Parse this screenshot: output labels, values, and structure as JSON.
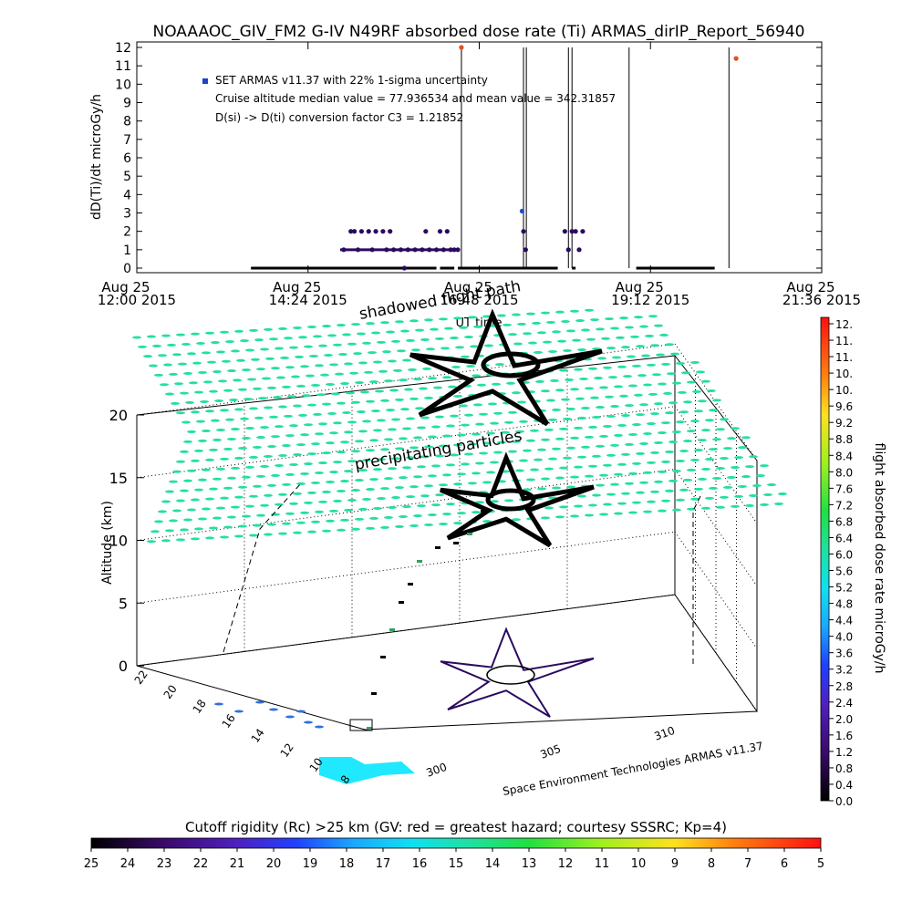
{
  "title": "NOAAAOC_GIV_FM2 G-IV    N49RF  absorbed dose rate (Ti) ARMAS_dirIP_Report_56940",
  "chart_data": [
    {
      "type": "scatter",
      "ylabel": "dD(Ti)/dt microGy/h",
      "xlabel": "UT time",
      "ylim": [
        0,
        12
      ],
      "y_ticks": [
        "0",
        "1",
        "2",
        "3",
        "4",
        "5",
        "6",
        "7",
        "8",
        "9",
        "10",
        "11",
        "12"
      ],
      "x_ticks": [
        {
          "top": "Aug 25",
          "bottom": "12:00 2015"
        },
        {
          "top": "Aug 25",
          "bottom": "14:24 2015"
        },
        {
          "top": "Aug 25",
          "bottom": "16:48 2015"
        },
        {
          "top": "Aug 25",
          "bottom": "19:12 2015"
        },
        {
          "top": "Aug 25",
          "bottom": "21:36 2015"
        }
      ],
      "x_range_hours": [
        12.0,
        21.6
      ],
      "annotations": [
        "SET ARMAS v11.37 with 22% 1-sigma uncertainty",
        "Cruise altitude median value = 77.936534 and mean value = 342.31857",
        "D(si) -> D(ti) conversion factor C3 = 1.21852"
      ],
      "legend_placement": "top-left",
      "series_color": "#2a0a5e",
      "baseline_segments": [
        [
          13.6,
          16.2
        ],
        [
          16.25,
          16.45
        ],
        [
          16.5,
          17.1
        ],
        [
          17.1,
          17.9
        ],
        [
          18.1,
          18.15
        ],
        [
          19.0,
          20.1
        ]
      ],
      "points": [
        [
          14.9,
          1
        ],
        [
          15.0,
          2
        ],
        [
          15.05,
          2
        ],
        [
          15.1,
          1
        ],
        [
          15.15,
          2
        ],
        [
          15.25,
          2
        ],
        [
          15.3,
          1
        ],
        [
          15.35,
          2
        ],
        [
          15.45,
          2
        ],
        [
          15.5,
          1
        ],
        [
          15.55,
          2
        ],
        [
          15.6,
          1
        ],
        [
          15.7,
          1
        ],
        [
          15.8,
          1
        ],
        [
          15.9,
          1
        ],
        [
          16.0,
          1
        ],
        [
          16.05,
          2
        ],
        [
          16.1,
          1
        ],
        [
          16.2,
          1
        ],
        [
          16.25,
          2
        ],
        [
          16.3,
          1
        ],
        [
          16.35,
          2
        ],
        [
          16.4,
          1
        ],
        [
          16.45,
          1
        ],
        [
          16.5,
          1
        ],
        [
          16.55,
          12
        ],
        [
          17.4,
          3.1
        ],
        [
          17.42,
          2
        ],
        [
          17.45,
          1
        ],
        [
          18.0,
          2
        ],
        [
          18.05,
          1
        ],
        [
          18.1,
          2
        ],
        [
          18.15,
          2
        ],
        [
          18.2,
          1
        ],
        [
          18.25,
          2
        ],
        [
          15.75,
          0
        ],
        [
          20.4,
          11.4
        ]
      ],
      "spikes": [
        [
          16.55,
          12
        ],
        [
          17.42,
          12
        ],
        [
          17.46,
          12
        ],
        [
          18.05,
          12
        ],
        [
          18.1,
          12
        ],
        [
          18.9,
          12
        ],
        [
          20.3,
          12
        ]
      ]
    },
    {
      "type": "scatter",
      "xlabel": "",
      "ylabel": "Altitude (km)",
      "z_ticks": [
        "0",
        "5",
        "10",
        "15",
        "20"
      ],
      "lat_ticks": [
        "22",
        "20",
        "18",
        "16",
        "14",
        "12",
        "10",
        "8"
      ],
      "lon_ticks": [
        "300",
        "305",
        "310"
      ],
      "annotations": [
        "shadowed flight path",
        "precipitating particles",
        "Space Environment Technologies ARMAS v11.37"
      ]
    }
  ],
  "colorbar_right": {
    "label": "flight absorbed dose rate microGy/h",
    "ticks": [
      "12.",
      "11.",
      "11.",
      "10.",
      "10.",
      "9.6",
      "9.2",
      "8.8",
      "8.4",
      "8.0",
      "7.6",
      "7.2",
      "6.8",
      "6.4",
      "6.0",
      "5.6",
      "5.2",
      "4.8",
      "4.4",
      "4.0",
      "3.6",
      "3.2",
      "2.8",
      "2.4",
      "2.0",
      "1.6",
      "1.2",
      "0.8",
      "0.4",
      "0.0"
    ]
  },
  "colorbar_bottom": {
    "label": "Cutoff rigidity (Rc) >25 km (GV: red = greatest hazard; courtesy SSSRC; Kp=4)",
    "ticks": [
      "25",
      "24",
      "23",
      "22",
      "21",
      "20",
      "19",
      "18",
      "17",
      "16",
      "15",
      "14",
      "13",
      "12",
      "11",
      "10",
      "9",
      "8",
      "7",
      "6",
      "5"
    ]
  },
  "colors": {
    "precip": "#22e0a0",
    "track": "#000000",
    "spike": "#000000",
    "highlight_point": "#e05020",
    "shadow_blue": "#3070e0",
    "shadow_cyan": "#20e8ff"
  }
}
